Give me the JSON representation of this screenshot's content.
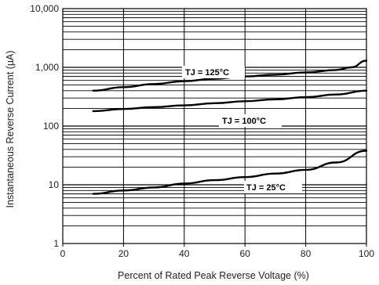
{
  "chart_data": {
    "type": "line",
    "title": "",
    "xlabel": "Percent of Rated Peak Reverse Voltage (%)",
    "ylabel": "Instantaneous Reverse Current (µA)",
    "xlim": [
      0,
      100
    ],
    "ylim": [
      1,
      10000
    ],
    "yscale": "log",
    "grid": true,
    "xticks": [
      "0",
      "20",
      "40",
      "60",
      "80",
      "100"
    ],
    "yticks": [
      "1",
      "10",
      "100",
      "1,000",
      "10,000"
    ],
    "series": [
      {
        "name": "TJ = 125°C",
        "x": [
          10,
          20,
          30,
          40,
          50,
          60,
          70,
          80,
          90,
          95,
          100
        ],
        "y": [
          400,
          460,
          520,
          580,
          640,
          700,
          750,
          820,
          900,
          1000,
          1300
        ]
      },
      {
        "name": "TJ = 100°C",
        "x": [
          10,
          20,
          30,
          40,
          50,
          60,
          70,
          80,
          90,
          100
        ],
        "y": [
          180,
          195,
          210,
          225,
          245,
          265,
          285,
          310,
          345,
          400
        ]
      },
      {
        "name": "TJ = 25°C",
        "x": [
          10,
          20,
          30,
          40,
          50,
          60,
          70,
          80,
          90,
          100
        ],
        "y": [
          7,
          8,
          9,
          10.5,
          12,
          13.5,
          15.5,
          18,
          24,
          38
        ]
      }
    ]
  }
}
